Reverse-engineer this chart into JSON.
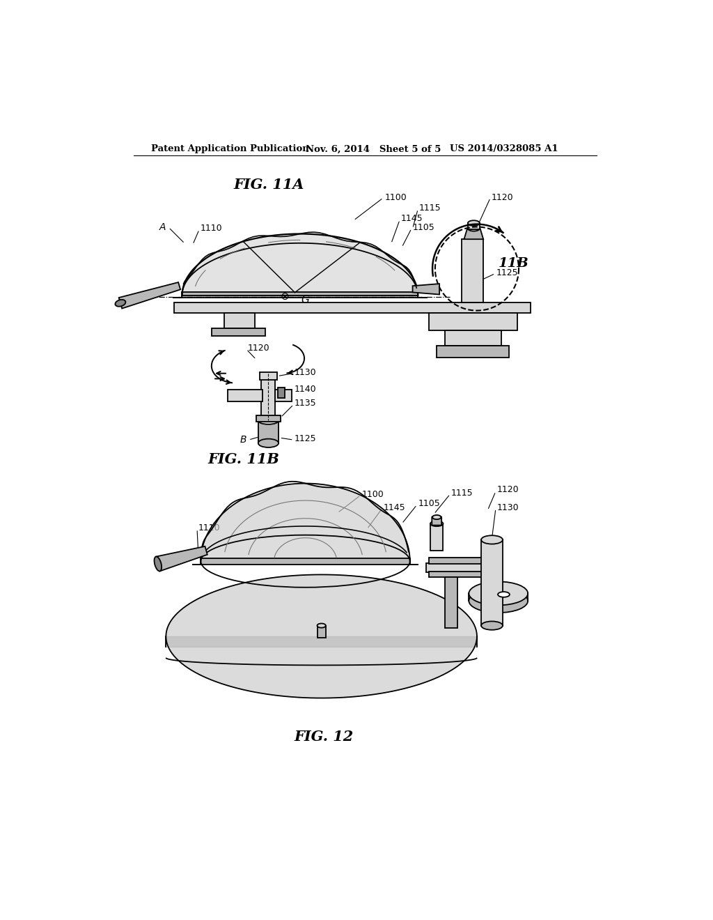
{
  "bg_color": "#ffffff",
  "header_left": "Patent Application Publication",
  "header_mid": "Nov. 6, 2014   Sheet 5 of 5",
  "header_right": "US 2014/0328085 A1",
  "fig11a": "FIG. 11A",
  "fig11b": "FIG. 11B",
  "fig12": "FIG. 12",
  "gray_light": "#d8d8d8",
  "gray_mid": "#b8b8b8",
  "gray_dark": "#888888",
  "gray_fill": "#e8e8e8",
  "dot_fill": "#cccccc"
}
